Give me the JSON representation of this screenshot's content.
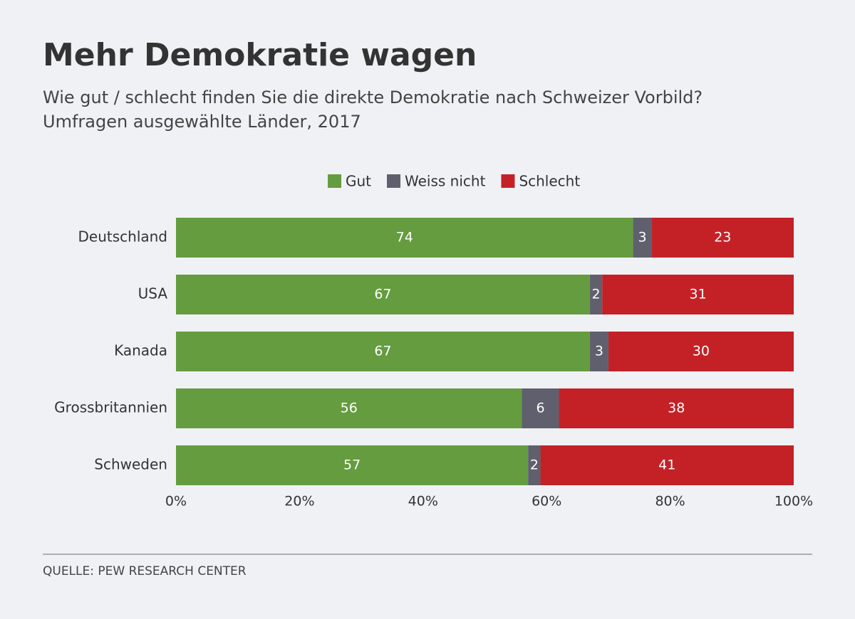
{
  "chart_data": {
    "type": "bar",
    "orientation": "horizontal",
    "stacked": true,
    "title": "Mehr Demokratie wagen",
    "subtitle": [
      "Wie gut / schlecht finden Sie die direkte Demokratie nach Schweizer Vorbild?",
      "Umfragen ausgewählte Länder, 2017"
    ],
    "categories": [
      "Deutschland",
      "USA",
      "Kanada",
      "Grossbritannien",
      "Schweden"
    ],
    "series": [
      {
        "name": "Gut",
        "color": "#659c3f",
        "values": [
          74,
          67,
          67,
          56,
          57
        ]
      },
      {
        "name": "Weiss nicht",
        "color": "#5f5f6d",
        "values": [
          3,
          2,
          3,
          6,
          2
        ]
      },
      {
        "name": "Schlecht",
        "color": "#c42127",
        "values": [
          23,
          31,
          30,
          38,
          41
        ]
      }
    ],
    "xlim": [
      0,
      100
    ],
    "xticks": [
      {
        "value": 0,
        "label": "0%"
      },
      {
        "value": 20,
        "label": "20%"
      },
      {
        "value": 40,
        "label": "40%"
      },
      {
        "value": 60,
        "label": "60%"
      },
      {
        "value": 80,
        "label": "80%"
      },
      {
        "value": 100,
        "label": "100%"
      }
    ],
    "grid": false,
    "legend": "top",
    "source": "QUELLE: PEW RESEARCH CENTER"
  }
}
